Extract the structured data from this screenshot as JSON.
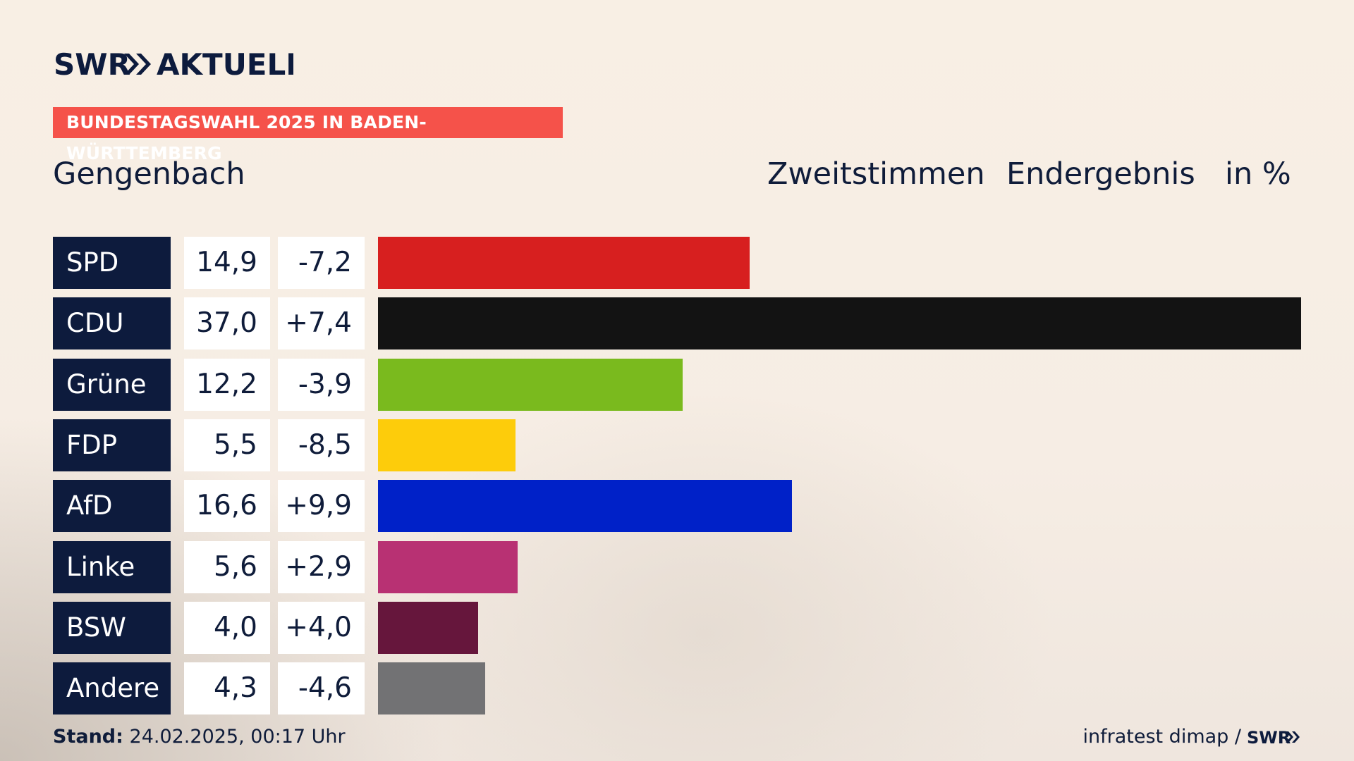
{
  "brand": {
    "logo_text": "SWR AKTUELL",
    "tag": "BUNDESTAGSWAHL 2025 IN BADEN-WÜRTTEMBERG",
    "tag_color": "#f5524a",
    "navy": "#0d1b3d"
  },
  "header": {
    "region": "Gengenbach",
    "col1": "Zweitstimmen",
    "col2": "Endergebnis",
    "col3": "in %"
  },
  "chart_data": {
    "type": "bar",
    "orientation": "horizontal",
    "categories": [
      "SPD",
      "CDU",
      "Grüne",
      "FDP",
      "AfD",
      "Linke",
      "BSW",
      "Andere"
    ],
    "values": [
      14.9,
      37.0,
      12.2,
      5.5,
      16.6,
      5.6,
      4.0,
      4.3
    ],
    "values_label": [
      "14,9",
      "37,0",
      "12,2",
      "5,5",
      "16,6",
      "5,6",
      "4,0",
      "4,3"
    ],
    "diff": [
      -7.2,
      7.4,
      -3.9,
      -8.5,
      9.9,
      2.9,
      4.0,
      -4.6
    ],
    "diff_label": [
      "-7,2",
      "+7,4",
      "-3,9",
      "-8,5",
      "+9,9",
      "+2,9",
      "+4,0",
      "-4,6"
    ],
    "colors": [
      "#d71f1f",
      "#131313",
      "#7aba1e",
      "#fdcc0b",
      "#0021c8",
      "#b83173",
      "#66163c",
      "#727274"
    ],
    "title": "Zweitstimmen Endergebnis",
    "unit": "in %",
    "xlim": [
      0,
      37.0
    ],
    "grid": false,
    "legend": "none"
  },
  "footer": {
    "stand_label": "Stand:",
    "stand_value": "24.02.2025, 00:17 Uhr",
    "source": "infratest dimap /",
    "source_logo": "SWR"
  }
}
